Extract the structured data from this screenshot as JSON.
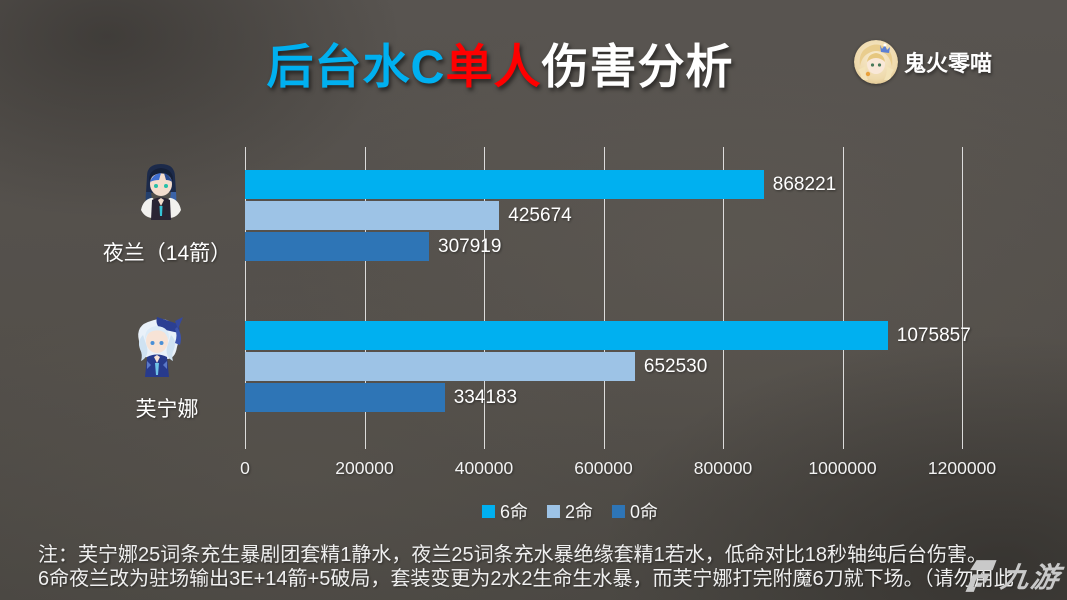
{
  "title": {
    "part1": "后台水C",
    "part2": "单人",
    "part3": "伤害分析"
  },
  "author": {
    "name": "鬼火零喵"
  },
  "colors": {
    "title_cyan": "#00b0f0",
    "title_red": "#ff0000",
    "grid": "#ebebeb",
    "text": "#ffffff",
    "logo_gray": "#c9c9c9",
    "background": "#534f4a"
  },
  "icons": {
    "author_avatar": "circular-anime-avatar",
    "category_0": "yelan-portrait",
    "category_1": "furina-portrait",
    "footer_mark": "9game-g-mark"
  },
  "chart_data": {
    "type": "bar",
    "orientation": "horizontal",
    "categories": [
      "夜兰（14箭）",
      "芙宁娜"
    ],
    "series": [
      {
        "name": "6命",
        "color": "#00b0f0",
        "values": [
          868221,
          1075857
        ]
      },
      {
        "name": "2命",
        "color": "#9dc3e6",
        "values": [
          425674,
          652530
        ]
      },
      {
        "name": "0命",
        "color": "#2e75b6",
        "values": [
          307919,
          334183
        ]
      }
    ],
    "xlim": [
      0,
      1200000
    ],
    "x_ticks": [
      "0",
      "200000",
      "400000",
      "600000",
      "800000",
      "1000000",
      "1200000"
    ],
    "grid": true,
    "legend_position": "bottom",
    "data_labels": true
  },
  "notes": {
    "line1": "注：芙宁娜25词条充生暴剧团套精1静水，夜兰25词条充水暴绝缘套精1若水，低命对比18秒轴纯后台伤害。",
    "line2": "6命夜兰改为驻场输出3E+14箭+5破局，套装变更为2水2生命生水暴，而芙宁娜打完附魔6刀就下场。（请勿用此"
  },
  "footer": {
    "logo_text": "九游"
  }
}
